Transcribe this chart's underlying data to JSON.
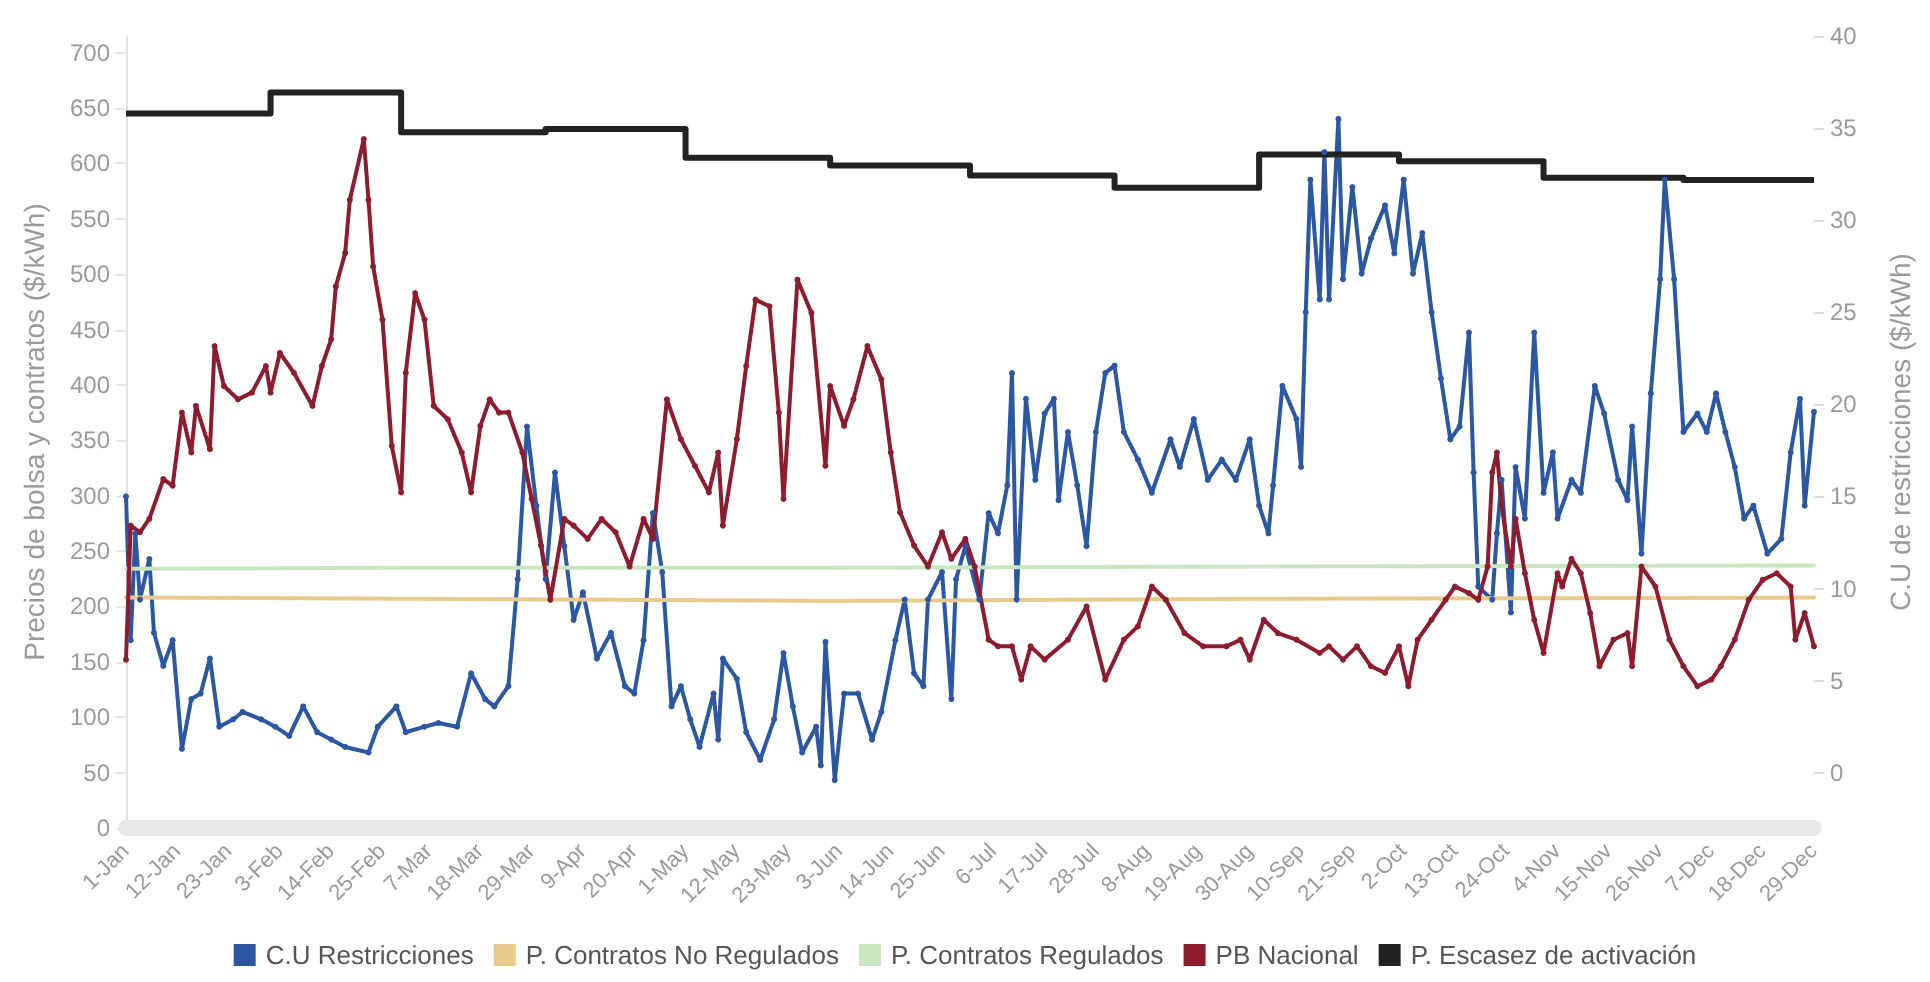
{
  "chart_data": {
    "type": "line",
    "ylabel": "Precios de bolsa y contratos ($/kWh)",
    "y2label": "C.U de restricciones ($/kWh)",
    "xlim": [
      "--01-01",
      "--12-29"
    ],
    "xticks": [
      {
        "value": "--01-01",
        "label": "1-Jan"
      },
      {
        "value": "--01-12",
        "label": "12-Jan"
      },
      {
        "value": "--01-23",
        "label": "23-Jan"
      },
      {
        "value": "--02-03",
        "label": "3-Feb"
      },
      {
        "value": "--02-14",
        "label": "14-Feb"
      },
      {
        "value": "--02-25",
        "label": "25-Feb"
      },
      {
        "value": "--03-07",
        "label": "7-Mar"
      },
      {
        "value": "--03-18",
        "label": "18-Mar"
      },
      {
        "value": "--03-29",
        "label": "29-Mar"
      },
      {
        "value": "--04-09",
        "label": "9-Apr"
      },
      {
        "value": "--04-20",
        "label": "20-Apr"
      },
      {
        "value": "--05-01",
        "label": "1-May"
      },
      {
        "value": "--05-12",
        "label": "12-May"
      },
      {
        "value": "--05-23",
        "label": "23-May"
      },
      {
        "value": "--06-03",
        "label": "3-Jun"
      },
      {
        "value": "--06-14",
        "label": "14-Jun"
      },
      {
        "value": "--06-25",
        "label": "25-Jun"
      },
      {
        "value": "--07-06",
        "label": "6-Jul"
      },
      {
        "value": "--07-17",
        "label": "17-Jul"
      },
      {
        "value": "--07-28",
        "label": "28-Jul"
      },
      {
        "value": "--08-08",
        "label": "8-Aug"
      },
      {
        "value": "--08-19",
        "label": "19-Aug"
      },
      {
        "value": "--08-30",
        "label": "30-Aug"
      },
      {
        "value": "--09-10",
        "label": "10-Sep"
      },
      {
        "value": "--09-21",
        "label": "21-Sep"
      },
      {
        "value": "--10-02",
        "label": "2-Oct"
      },
      {
        "value": "--10-13",
        "label": "13-Oct"
      },
      {
        "value": "--10-24",
        "label": "24-Oct"
      },
      {
        "value": "--11-04",
        "label": "4-Nov"
      },
      {
        "value": "--11-15",
        "label": "15-Nov"
      },
      {
        "value": "--11-26",
        "label": "26-Nov"
      },
      {
        "value": "--12-07",
        "label": "7-Dec"
      },
      {
        "value": "--12-18",
        "label": "18-Dec"
      },
      {
        "value": "--12-29",
        "label": "29-Dec"
      }
    ],
    "ylim": [
      0,
      715
    ],
    "yticks": [
      0,
      50,
      100,
      150,
      200,
      250,
      300,
      350,
      400,
      450,
      500,
      550,
      600,
      650,
      700
    ],
    "y2lim": [
      -3,
      40
    ],
    "y2ticks": [
      0,
      5,
      10,
      15,
      20,
      25,
      30,
      35,
      40
    ],
    "grid": false,
    "legend": "bottom",
    "marker": "circle",
    "line_style": "solid",
    "series": [
      {
        "name": "C.U Restricciones",
        "color": "#2b57a3",
        "axis": "y2",
        "x": [
          "--01-01",
          "--01-02",
          "--01-03",
          "--01-04",
          "--01-06",
          "--01-07",
          "--01-09",
          "--01-11",
          "--01-13",
          "--01-15",
          "--01-17",
          "--01-19",
          "--01-21",
          "--01-24",
          "--01-26",
          "--01-30",
          "--02-02",
          "--02-05",
          "--02-08",
          "--02-11",
          "--02-14",
          "--02-17",
          "--02-22",
          "--02-24",
          "--02-28",
          "--03-02",
          "--03-06",
          "--03-09",
          "--03-13",
          "--03-16",
          "--03-19",
          "--03-21",
          "--03-24",
          "--03-26",
          "--03-28",
          "--03-30",
          "--04-01",
          "--04-03",
          "--04-05",
          "--04-07",
          "--04-09",
          "--04-12",
          "--04-15",
          "--04-18",
          "--04-20",
          "--04-22",
          "--04-24",
          "--04-26",
          "--04-28",
          "--04-30",
          "--05-02",
          "--05-04",
          "--05-07",
          "--05-08",
          "--05-09",
          "--05-12",
          "--05-14",
          "--05-17",
          "--05-20",
          "--05-22",
          "--05-24",
          "--05-26",
          "--05-29",
          "--05-30",
          "--05-31",
          "--06-02",
          "--06-04",
          "--06-07",
          "--06-10",
          "--06-12",
          "--06-15",
          "--06-17",
          "--06-19",
          "--06-21",
          "--06-22",
          "--06-25",
          "--06-27",
          "--06-28",
          "--06-30",
          "--07-03",
          "--07-05",
          "--07-07",
          "--07-09",
          "--07-10",
          "--07-11",
          "--07-13",
          "--07-15",
          "--07-17",
          "--07-19",
          "--07-20",
          "--07-22",
          "--07-24",
          "--07-26",
          "--07-28",
          "--07-30",
          "--08-01",
          "--08-03",
          "--08-06",
          "--08-09",
          "--08-13",
          "--08-15",
          "--08-18",
          "--08-21",
          "--08-24",
          "--08-27",
          "--08-30",
          "--09-01",
          "--09-03",
          "--09-04",
          "--09-06",
          "--09-09",
          "--09-10",
          "--09-11",
          "--09-12",
          "--09-14",
          "--09-15",
          "--09-16",
          "--09-18",
          "--09-19",
          "--09-21",
          "--09-23",
          "--09-25",
          "--09-28",
          "--09-30",
          "--10-02",
          "--10-04",
          "--10-06",
          "--10-08",
          "--10-10",
          "--10-12",
          "--10-14",
          "--10-16",
          "--10-17",
          "--10-18",
          "--10-21",
          "--10-22",
          "--10-23",
          "--10-25",
          "--10-26",
          "--10-28",
          "--10-30",
          "--11-01",
          "--11-03",
          "--11-04",
          "--11-07",
          "--11-09",
          "--11-12",
          "--11-14",
          "--11-17",
          "--11-19",
          "--11-20",
          "--11-22",
          "--11-24",
          "--11-26",
          "--11-27",
          "--11-29",
          "--12-01",
          "--12-04",
          "--12-06",
          "--12-08",
          "--12-10",
          "--12-12",
          "--12-14",
          "--12-16",
          "--12-19",
          "--12-22",
          "--12-24",
          "--12-26",
          "--12-27",
          "--12-29"
        ],
        "values": [
          15.0,
          7.2,
          13.0,
          9.4,
          11.6,
          7.6,
          5.8,
          7.2,
          1.3,
          4.0,
          4.3,
          6.2,
          2.5,
          2.9,
          3.3,
          2.9,
          2.5,
          2.0,
          3.6,
          2.2,
          1.8,
          1.4,
          1.1,
          2.5,
          3.6,
          2.2,
          2.5,
          2.7,
          2.5,
          5.4,
          4.0,
          3.6,
          4.7,
          10.5,
          18.8,
          14.5,
          10.5,
          16.3,
          12.3,
          8.3,
          9.8,
          6.2,
          7.6,
          4.7,
          4.3,
          7.2,
          14.1,
          10.9,
          3.6,
          4.7,
          2.9,
          1.4,
          4.3,
          1.8,
          6.2,
          5.1,
          2.2,
          0.7,
          2.9,
          6.5,
          3.6,
          1.1,
          2.5,
          0.4,
          7.1,
          -0.4,
          4.3,
          4.3,
          1.8,
          3.3,
          7.2,
          9.4,
          5.4,
          4.7,
          9.4,
          10.9,
          4.0,
          10.5,
          12.3,
          9.4,
          14.1,
          13.0,
          15.6,
          21.7,
          9.4,
          20.3,
          15.9,
          19.5,
          20.3,
          14.8,
          18.5,
          15.6,
          12.3,
          18.5,
          21.7,
          22.1,
          18.5,
          17.0,
          15.2,
          18.1,
          16.6,
          19.2,
          15.9,
          17.0,
          15.9,
          18.1,
          14.5,
          13.0,
          15.6,
          21.0,
          19.2,
          16.6,
          25.0,
          32.2,
          25.7,
          33.7,
          25.7,
          35.5,
          26.8,
          31.8,
          27.1,
          29.0,
          30.8,
          28.2,
          32.2,
          27.1,
          29.3,
          25.0,
          21.4,
          18.1,
          18.8,
          23.9,
          16.3,
          10.1,
          9.4,
          13.0,
          15.9,
          8.7,
          16.6,
          13.8,
          23.9,
          15.2,
          17.4,
          13.8,
          15.9,
          15.2,
          21.0,
          19.5,
          15.9,
          14.8,
          18.8,
          11.9,
          20.6,
          26.8,
          32.2,
          26.8,
          18.5,
          19.5,
          18.5,
          20.6,
          18.5,
          16.6,
          13.8,
          14.5,
          11.9,
          12.7,
          17.4,
          20.3,
          14.5,
          19.6
        ]
      },
      {
        "name": "P. Contratos No Regulados",
        "color": "#e9c98c",
        "marker": "none",
        "x": [
          "--01-01",
          "--03-01",
          "--06-01",
          "--09-01",
          "--12-29"
        ],
        "values": [
          208,
          207,
          205,
          207,
          208
        ]
      },
      {
        "name": "P. Contratos Regulados",
        "color": "#c8e6c0",
        "marker": "none",
        "x": [
          "--01-01",
          "--03-01",
          "--06-01",
          "--09-01",
          "--12-29"
        ],
        "values": [
          234,
          235,
          235,
          236,
          237
        ]
      },
      {
        "name": "PB Nacional",
        "color": "#8c1c2e",
        "x": [
          "--01-01",
          "--01-02",
          "--01-04",
          "--01-06",
          "--01-09",
          "--01-11",
          "--01-13",
          "--01-15",
          "--01-16",
          "--01-19",
          "--01-20",
          "--01-22",
          "--01-25",
          "--01-28",
          "--01-31",
          "--02-01",
          "--02-03",
          "--02-06",
          "--02-10",
          "--02-12",
          "--02-14",
          "--02-15",
          "--02-17",
          "--02-18",
          "--02-21",
          "--02-22",
          "--02-23",
          "--02-25",
          "--02-27",
          "--03-01",
          "--03-02",
          "--03-04",
          "--03-06",
          "--03-08",
          "--03-11",
          "--03-14",
          "--03-16",
          "--03-18",
          "--03-20",
          "--03-22",
          "--03-24",
          "--03-27",
          "--03-29",
          "--03-31",
          "--04-02",
          "--04-05",
          "--04-07",
          "--04-10",
          "--04-13",
          "--04-16",
          "--04-19",
          "--04-22",
          "--04-24",
          "--04-27",
          "--04-30",
          "--05-03",
          "--05-06",
          "--05-08",
          "--05-09",
          "--05-12",
          "--05-14",
          "--05-16",
          "--05-19",
          "--05-21",
          "--05-22",
          "--05-25",
          "--05-28",
          "--05-31",
          "--06-01",
          "--06-04",
          "--06-06",
          "--06-09",
          "--06-12",
          "--06-14",
          "--06-16",
          "--06-19",
          "--06-22",
          "--06-25",
          "--06-27",
          "--06-30",
          "--07-02",
          "--07-05",
          "--07-07",
          "--07-10",
          "--07-12",
          "--07-14",
          "--07-17",
          "--07-22",
          "--07-26",
          "--07-30",
          "--08-03",
          "--08-06",
          "--08-09",
          "--08-12",
          "--08-16",
          "--08-20",
          "--08-25",
          "--08-28",
          "--08-30",
          "--09-02",
          "--09-05",
          "--09-09",
          "--09-14",
          "--09-16",
          "--09-19",
          "--09-22",
          "--09-25",
          "--09-28",
          "--10-01",
          "--10-03",
          "--10-05",
          "--10-08",
          "--10-11",
          "--10-13",
          "--10-16",
          "--10-18",
          "--10-20",
          "--10-21",
          "--10-22",
          "--10-23",
          "--10-25",
          "--10-26",
          "--10-28",
          "--10-30",
          "--11-01",
          "--11-04",
          "--11-05",
          "--11-07",
          "--11-09",
          "--11-11",
          "--11-13",
          "--11-16",
          "--11-19",
          "--11-20",
          "--11-22",
          "--11-25",
          "--11-28",
          "--12-01",
          "--12-04",
          "--12-07",
          "--12-09",
          "--12-12",
          "--12-15",
          "--12-18",
          "--12-21",
          "--12-24",
          "--12-25",
          "--12-27",
          "--12-29"
        ],
        "values": [
          152,
          273,
          267,
          279,
          315,
          309,
          375,
          339,
          381,
          342,
          435,
          399,
          387,
          393,
          417,
          393,
          429,
          411,
          381,
          417,
          441,
          489,
          519,
          567,
          622,
          567,
          507,
          459,
          345,
          303,
          411,
          483,
          459,
          381,
          369,
          339,
          303,
          363,
          387,
          375,
          375,
          339,
          297,
          255,
          206,
          279,
          273,
          261,
          279,
          267,
          236,
          279,
          261,
          387,
          351,
          327,
          303,
          339,
          273,
          351,
          417,
          477,
          471,
          375,
          297,
          495,
          465,
          327,
          399,
          363,
          387,
          435,
          405,
          339,
          285,
          255,
          236,
          267,
          243,
          261,
          236,
          170,
          164,
          164,
          134,
          164,
          152,
          170,
          200,
          134,
          170,
          182,
          218,
          206,
          176,
          164,
          164,
          170,
          152,
          188,
          176,
          170,
          158,
          164,
          152,
          164,
          146,
          140,
          164,
          128,
          170,
          188,
          206,
          218,
          212,
          206,
          236,
          321,
          339,
          291,
          236,
          279,
          230,
          188,
          158,
          230,
          218,
          243,
          230,
          194,
          146,
          170,
          176,
          146,
          236,
          218,
          170,
          146,
          128,
          134,
          146,
          170,
          206,
          224,
          230,
          218,
          170,
          194,
          164
        ]
      },
      {
        "name": "P. Escasez de activación",
        "color": "#222222",
        "type": "step",
        "marker": "none",
        "x": [
          "--01-01",
          "--02-01",
          "--03-01",
          "--04-01",
          "--05-01",
          "--06-01",
          "--07-01",
          "--08-01",
          "--09-01",
          "--10-01",
          "--11-01",
          "--12-01",
          "--12-29"
        ],
        "values": [
          645,
          664,
          628,
          631,
          605,
          598,
          589,
          578,
          608,
          602,
          587,
          585,
          585
        ]
      }
    ]
  }
}
